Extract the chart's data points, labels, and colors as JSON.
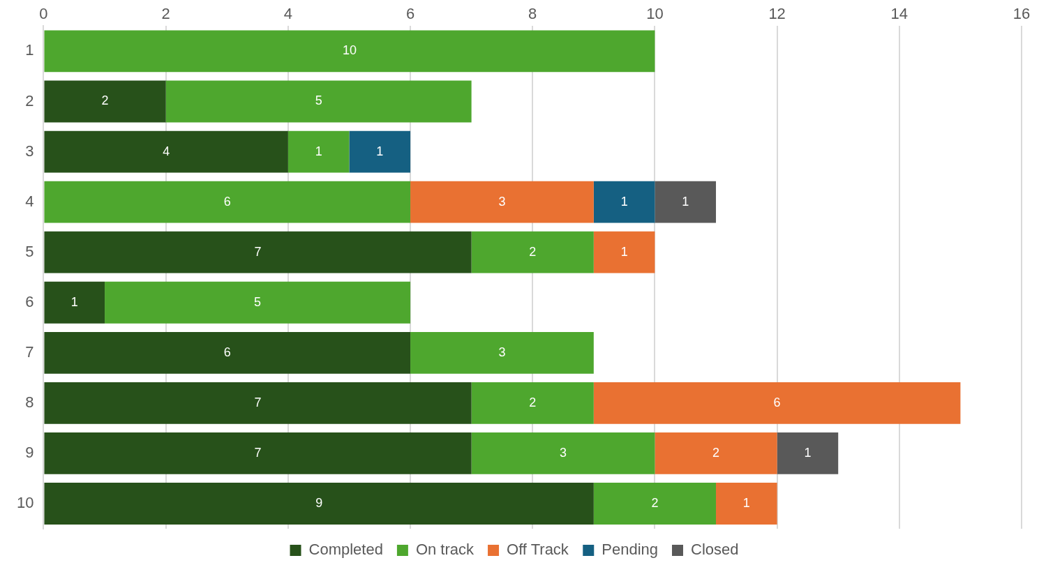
{
  "chart_data": {
    "type": "bar",
    "orientation": "horizontal",
    "stacked": true,
    "categories": [
      "1",
      "2",
      "3",
      "4",
      "5",
      "6",
      "7",
      "8",
      "9",
      "10"
    ],
    "series": [
      {
        "name": "Completed",
        "color": "#27511a",
        "values": [
          null,
          2,
          4,
          null,
          7,
          1,
          6,
          7,
          7,
          9
        ]
      },
      {
        "name": "On track",
        "color": "#4ea72e",
        "values": [
          10,
          5,
          1,
          6,
          2,
          5,
          3,
          2,
          3,
          2
        ]
      },
      {
        "name": "Off Track",
        "color": "#e97132",
        "values": [
          null,
          null,
          null,
          3,
          1,
          null,
          null,
          6,
          2,
          1
        ]
      },
      {
        "name": "Pending",
        "color": "#156082",
        "values": [
          null,
          null,
          1,
          1,
          null,
          null,
          null,
          null,
          null,
          null
        ]
      },
      {
        "name": "Closed",
        "color": "#595959",
        "values": [
          null,
          null,
          null,
          1,
          null,
          null,
          null,
          null,
          1,
          null
        ]
      }
    ],
    "xlim": [
      0,
      16
    ],
    "xticks": [
      0,
      2,
      4,
      6,
      8,
      10,
      12,
      14,
      16
    ],
    "grid": "x",
    "legend": "bottom",
    "data_labels": true
  }
}
